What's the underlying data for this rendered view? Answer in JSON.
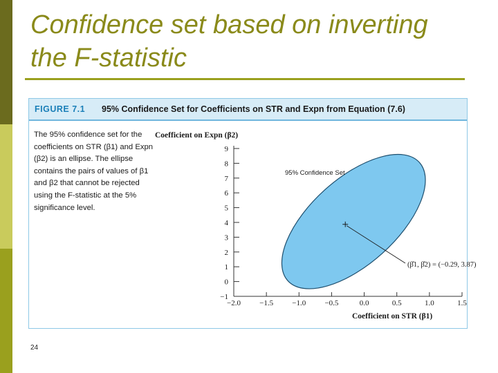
{
  "slide": {
    "title_line1": "Confidence set based on inverting",
    "title_line2": "the F-statistic",
    "page_number": "24"
  },
  "figure": {
    "label": "FIGURE 7.1",
    "caption": "95% Confidence Set for Coefficients on STR and Expn from Equation (7.6)",
    "description": "The 95% confidence set for the coefficients on STR (β1) and Expn (β2) is an ellipse. The ellipse contains the pairs of values of β1 and β2 that cannot be rejected using the F-statistic at the 5% significance level."
  },
  "chart_data": {
    "type": "scatter",
    "ylabel": "Coefficient on Expn (β2)",
    "xlabel": "Coefficient on STR (β1)",
    "xlim": [
      -2.0,
      1.5
    ],
    "ylim": [
      -1,
      9
    ],
    "x_ticks": [
      "−2.0",
      "−1.5",
      "−1.0",
      "−0.5",
      "0.0",
      "0.5",
      "1.0",
      "1.5"
    ],
    "x_tick_values": [
      -2.0,
      -1.5,
      -1.0,
      -0.5,
      0.0,
      0.5,
      1.0,
      1.5
    ],
    "y_ticks": [
      "−1",
      "0",
      "1",
      "2",
      "3",
      "4",
      "5",
      "6",
      "7",
      "8",
      "9"
    ],
    "y_tick_values": [
      -1,
      0,
      1,
      2,
      3,
      4,
      5,
      6,
      7,
      8,
      9
    ],
    "ellipse_label": "95% Confidence Set",
    "point": {
      "x": -0.29,
      "y": 3.87
    },
    "point_label": "(β̂1, β̂2) = (−0.29, 3.87)",
    "ellipse_fill": "#7ec8ef",
    "ellipse_stroke": "#1f4f6e"
  }
}
